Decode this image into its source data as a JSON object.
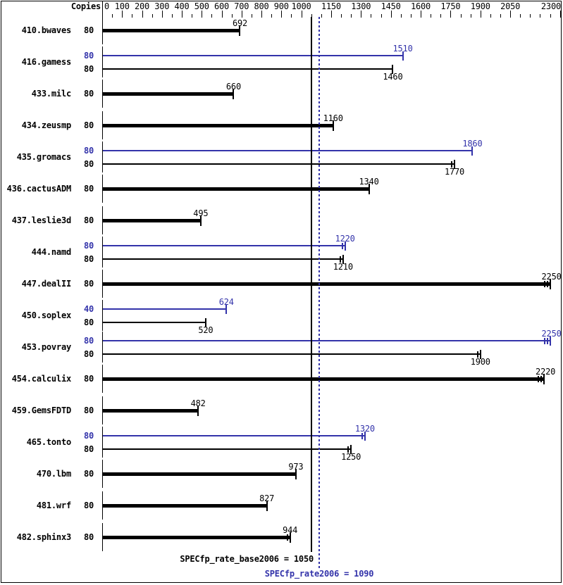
{
  "header": {
    "copies_label": "Copies"
  },
  "colors": {
    "base": "#000000",
    "peak": "#3333aa",
    "background": "#ffffff"
  },
  "summary": {
    "base_text": "SPECfp_rate_base2006 = 1050",
    "peak_text": "SPECfp_rate2006 = 1090",
    "base_value": 1050,
    "peak_value": 1090
  },
  "chart_data": {
    "type": "bar",
    "orientation": "horizontal",
    "title": "SPECfp_rate2006 results per benchmark",
    "xlim": [
      0,
      2300
    ],
    "axis": {
      "major_tick_labels": [
        0,
        100,
        200,
        300,
        400,
        500,
        600,
        700,
        800,
        900,
        1000,
        1150,
        1300,
        1450,
        1600,
        1750,
        1900,
        2050,
        2300
      ],
      "minor_step": 50,
      "max": 2300
    },
    "legend": [
      {
        "name": "peak (SPECfp_rate2006)",
        "color": "#3333aa"
      },
      {
        "name": "base (SPECfp_rate_base2006)",
        "color": "#000000"
      }
    ],
    "reference_lines": [
      {
        "name": "base",
        "value": 1050,
        "style": "solid",
        "color": "#000000"
      },
      {
        "name": "peak",
        "value": 1090,
        "style": "dotted",
        "color": "#3333aa"
      }
    ],
    "benchmarks": [
      {
        "name": "410.bwaves",
        "bars": [
          {
            "kind": "base",
            "copies": 80,
            "value": 692,
            "run_marks": 0
          }
        ]
      },
      {
        "name": "416.gamess",
        "bars": [
          {
            "kind": "peak",
            "copies": 80,
            "value": 1510,
            "run_marks": 0
          },
          {
            "kind": "base",
            "copies": 80,
            "value": 1460,
            "run_marks": 0
          }
        ]
      },
      {
        "name": "433.milc",
        "bars": [
          {
            "kind": "base",
            "copies": 80,
            "value": 660,
            "run_marks": 0
          }
        ]
      },
      {
        "name": "434.zeusmp",
        "bars": [
          {
            "kind": "base",
            "copies": 80,
            "value": 1160,
            "run_marks": 0
          }
        ]
      },
      {
        "name": "435.gromacs",
        "bars": [
          {
            "kind": "peak",
            "copies": 80,
            "value": 1860,
            "run_marks": 0
          },
          {
            "kind": "base",
            "copies": 80,
            "value": 1770,
            "run_marks": 1
          }
        ]
      },
      {
        "name": "436.cactusADM",
        "bars": [
          {
            "kind": "base",
            "copies": 80,
            "value": 1340,
            "run_marks": 0
          }
        ]
      },
      {
        "name": "437.leslie3d",
        "bars": [
          {
            "kind": "base",
            "copies": 80,
            "value": 495,
            "run_marks": 0
          }
        ]
      },
      {
        "name": "444.namd",
        "bars": [
          {
            "kind": "peak",
            "copies": 80,
            "value": 1220,
            "run_marks": 1
          },
          {
            "kind": "base",
            "copies": 80,
            "value": 1210,
            "run_marks": 1
          }
        ]
      },
      {
        "name": "447.dealII",
        "bars": [
          {
            "kind": "base",
            "copies": 80,
            "value": 2250,
            "run_marks": 2
          }
        ]
      },
      {
        "name": "450.soplex",
        "bars": [
          {
            "kind": "peak",
            "copies": 40,
            "value": 624,
            "run_marks": 0
          },
          {
            "kind": "base",
            "copies": 80,
            "value": 520,
            "run_marks": 0
          }
        ]
      },
      {
        "name": "453.povray",
        "bars": [
          {
            "kind": "peak",
            "copies": 80,
            "value": 2250,
            "run_marks": 2
          },
          {
            "kind": "base",
            "copies": 80,
            "value": 1900,
            "run_marks": 1
          }
        ]
      },
      {
        "name": "454.calculix",
        "bars": [
          {
            "kind": "base",
            "copies": 80,
            "value": 2220,
            "run_marks": 2
          }
        ]
      },
      {
        "name": "459.GemsFDTD",
        "bars": [
          {
            "kind": "base",
            "copies": 80,
            "value": 482,
            "run_marks": 0
          }
        ]
      },
      {
        "name": "465.tonto",
        "bars": [
          {
            "kind": "peak",
            "copies": 80,
            "value": 1320,
            "run_marks": 1
          },
          {
            "kind": "base",
            "copies": 80,
            "value": 1250,
            "run_marks": 1
          }
        ]
      },
      {
        "name": "470.lbm",
        "bars": [
          {
            "kind": "base",
            "copies": 80,
            "value": 973,
            "run_marks": 0
          }
        ]
      },
      {
        "name": "481.wrf",
        "bars": [
          {
            "kind": "base",
            "copies": 80,
            "value": 827,
            "run_marks": 0
          }
        ]
      },
      {
        "name": "482.sphinx3",
        "bars": [
          {
            "kind": "base",
            "copies": 80,
            "value": 944,
            "run_marks": 1
          }
        ]
      }
    ]
  }
}
